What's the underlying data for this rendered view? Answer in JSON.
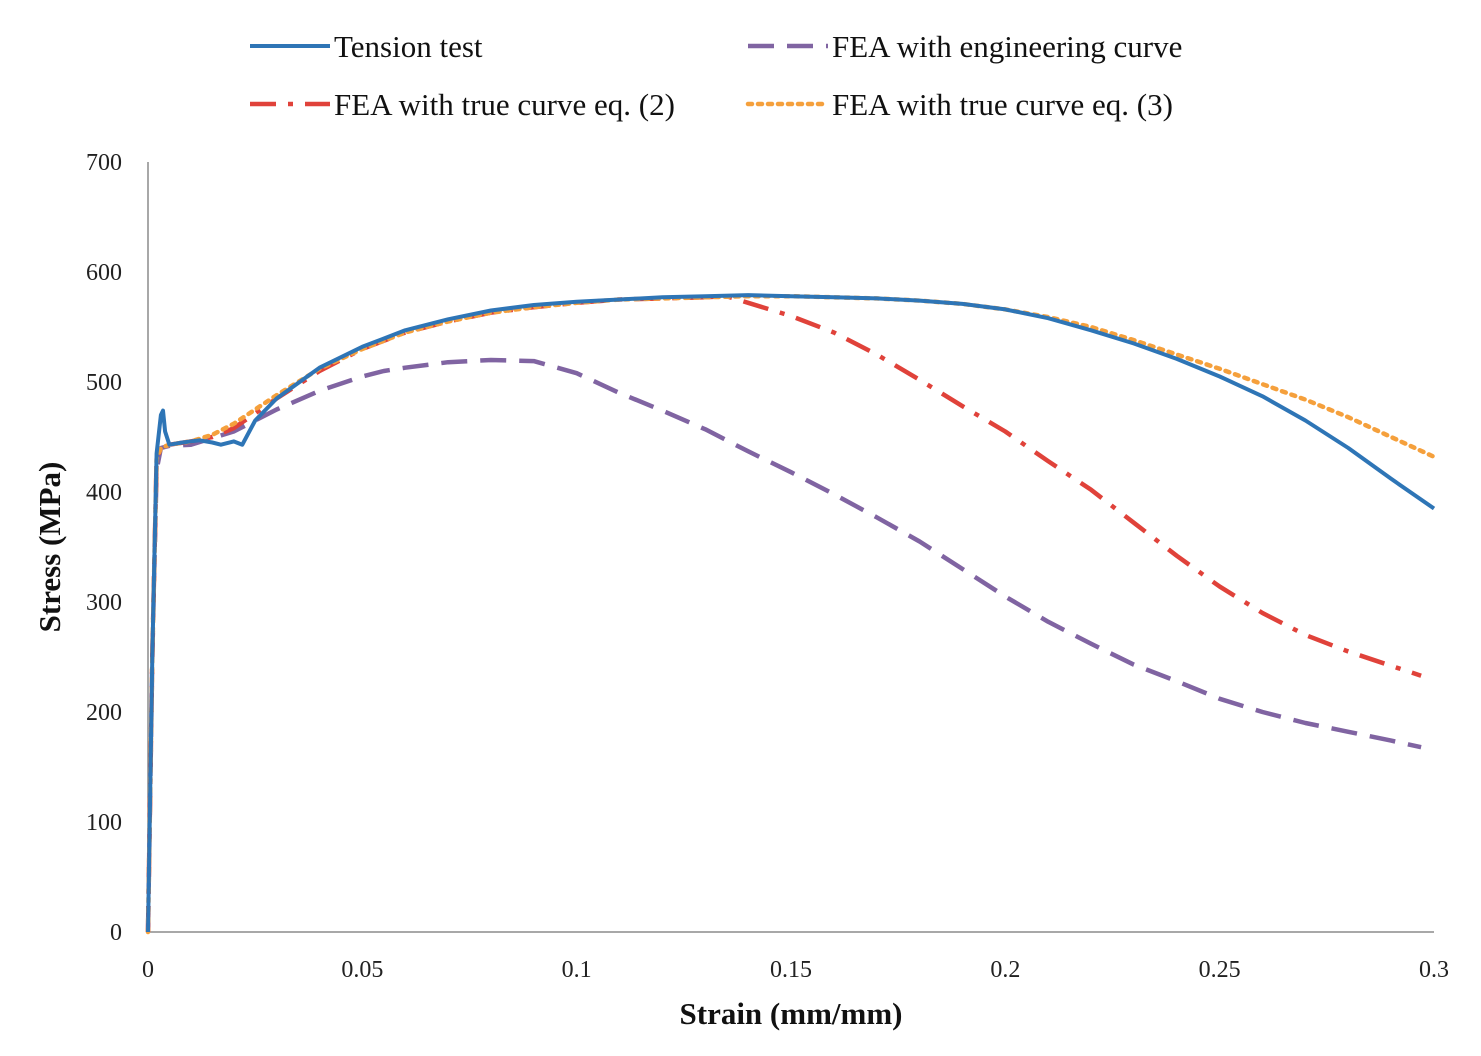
{
  "chart_data": {
    "type": "line",
    "title": "",
    "xlabel": "Strain (mm/mm)",
    "ylabel": "Stress (MPa)",
    "xlim": [
      0,
      0.3
    ],
    "ylim": [
      0,
      700
    ],
    "x_ticks": [
      0,
      0.05,
      0.1,
      0.15,
      0.2,
      0.25,
      0.3
    ],
    "x_tick_labels": [
      "0",
      "0.05",
      "0.1",
      "0.15",
      "0.2",
      "0.25",
      "0.3"
    ],
    "y_ticks": [
      0,
      100,
      200,
      300,
      400,
      500,
      600,
      700
    ],
    "y_tick_labels": [
      "0",
      "100",
      "200",
      "300",
      "400",
      "500",
      "600",
      "700"
    ],
    "grid": false,
    "legend_position": "top",
    "series": [
      {
        "name": "Tension test",
        "color": "#2e75b6",
        "style": "solid",
        "x": [
          0,
          0.001,
          0.002,
          0.003,
          0.0035,
          0.004,
          0.005,
          0.008,
          0.012,
          0.015,
          0.017,
          0.02,
          0.022,
          0.025,
          0.03,
          0.04,
          0.05,
          0.06,
          0.07,
          0.08,
          0.09,
          0.1,
          0.11,
          0.12,
          0.13,
          0.14,
          0.15,
          0.16,
          0.17,
          0.18,
          0.19,
          0.2,
          0.21,
          0.22,
          0.23,
          0.24,
          0.25,
          0.26,
          0.27,
          0.28,
          0.29,
          0.3
        ],
        "y": [
          0,
          250,
          435,
          470,
          474,
          455,
          443,
          445,
          447,
          445,
          443,
          446,
          443,
          465,
          485,
          513,
          532,
          547,
          557,
          565,
          570,
          573,
          575,
          577,
          578,
          579,
          578,
          577,
          576,
          574,
          571,
          566,
          558,
          547,
          535,
          521,
          505,
          487,
          465,
          440,
          412,
          385
        ]
      },
      {
        "name": "FEA with engineering curve",
        "color": "#8064a2",
        "style": "dashed",
        "x": [
          0,
          0.001,
          0.002,
          0.003,
          0.005,
          0.01,
          0.02,
          0.03,
          0.04,
          0.05,
          0.055,
          0.06,
          0.07,
          0.08,
          0.09,
          0.1,
          0.11,
          0.12,
          0.13,
          0.14,
          0.15,
          0.16,
          0.17,
          0.18,
          0.19,
          0.2,
          0.21,
          0.22,
          0.23,
          0.24,
          0.25,
          0.26,
          0.27,
          0.28,
          0.29,
          0.297
        ],
        "y": [
          0,
          250,
          420,
          440,
          442,
          443,
          455,
          475,
          492,
          505,
          510,
          513,
          518,
          520,
          519,
          508,
          490,
          474,
          457,
          437,
          418,
          398,
          377,
          355,
          330,
          305,
          282,
          262,
          243,
          228,
          212,
          200,
          190,
          182,
          174,
          168
        ]
      },
      {
        "name": "FEA with true curve eq. (2)",
        "color": "#e0423a",
        "style": "dashdot",
        "x": [
          0,
          0.001,
          0.002,
          0.003,
          0.005,
          0.01,
          0.015,
          0.02,
          0.03,
          0.04,
          0.05,
          0.06,
          0.07,
          0.08,
          0.09,
          0.1,
          0.11,
          0.12,
          0.13,
          0.135,
          0.14,
          0.15,
          0.16,
          0.17,
          0.18,
          0.19,
          0.2,
          0.21,
          0.22,
          0.23,
          0.24,
          0.25,
          0.26,
          0.27,
          0.28,
          0.29,
          0.297
        ],
        "y": [
          0,
          250,
          430,
          440,
          443,
          446,
          450,
          458,
          485,
          510,
          530,
          545,
          555,
          563,
          568,
          572,
          575,
          576,
          577,
          578,
          572,
          560,
          545,
          525,
          502,
          478,
          455,
          428,
          402,
          372,
          342,
          314,
          290,
          270,
          255,
          242,
          233
        ]
      },
      {
        "name": "FEA with true curve eq. (3)",
        "color": "#f5a03c",
        "style": "dotted",
        "x": [
          0,
          0.001,
          0.002,
          0.003,
          0.005,
          0.01,
          0.015,
          0.02,
          0.03,
          0.04,
          0.05,
          0.06,
          0.07,
          0.08,
          0.09,
          0.1,
          0.11,
          0.12,
          0.13,
          0.14,
          0.15,
          0.16,
          0.17,
          0.18,
          0.19,
          0.2,
          0.21,
          0.22,
          0.23,
          0.24,
          0.25,
          0.26,
          0.27,
          0.28,
          0.29,
          0.3
        ],
        "y": [
          0,
          250,
          430,
          440,
          443,
          446,
          452,
          462,
          488,
          512,
          530,
          545,
          555,
          563,
          568,
          572,
          575,
          576,
          577,
          578,
          578,
          577,
          576,
          574,
          571,
          566,
          559,
          550,
          538,
          525,
          512,
          498,
          484,
          468,
          450,
          432
        ]
      }
    ]
  }
}
